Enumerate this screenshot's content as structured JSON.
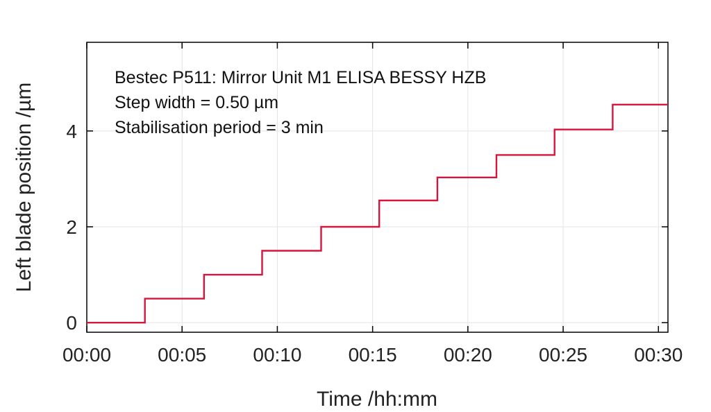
{
  "chart_data": {
    "type": "line",
    "xlabel": "Time /hh:mm",
    "ylabel": "Left blade position /µm",
    "xlim": [
      0,
      30.5
    ],
    "ylim": [
      -0.2,
      5.85
    ],
    "x_ticks": [
      {
        "value": 0,
        "label": "00:00"
      },
      {
        "value": 5,
        "label": "00:05"
      },
      {
        "value": 10,
        "label": "00:10"
      },
      {
        "value": 15,
        "label": "00:15"
      },
      {
        "value": 20,
        "label": "00:20"
      },
      {
        "value": 25,
        "label": "00:25"
      },
      {
        "value": 30,
        "label": "00:30"
      }
    ],
    "y_ticks": [
      {
        "value": 0,
        "label": "0"
      },
      {
        "value": 2,
        "label": "2"
      },
      {
        "value": 4,
        "label": "4"
      }
    ],
    "grid": true,
    "annotations": [
      "Bestec P511: Mirror Unit M1 ELISA BESSY HZB",
      "Step width = 0.50 µm",
      "Stabilisation period = 3 min"
    ],
    "line_color": "#d6153f",
    "series": [
      {
        "x": [
          0,
          3.05,
          3.05,
          6.15,
          6.15,
          9.2,
          9.2,
          12.3,
          12.3,
          15.35,
          15.35,
          18.4,
          18.4,
          21.5,
          21.5,
          24.55,
          24.55,
          27.6,
          27.6,
          30.5
        ],
        "values": [
          0,
          0,
          0.5,
          0.5,
          1.0,
          1.0,
          1.5,
          1.5,
          2.0,
          2.0,
          2.55,
          2.55,
          3.03,
          3.03,
          3.5,
          3.5,
          4.03,
          4.03,
          4.55,
          4.55
        ]
      }
    ]
  }
}
